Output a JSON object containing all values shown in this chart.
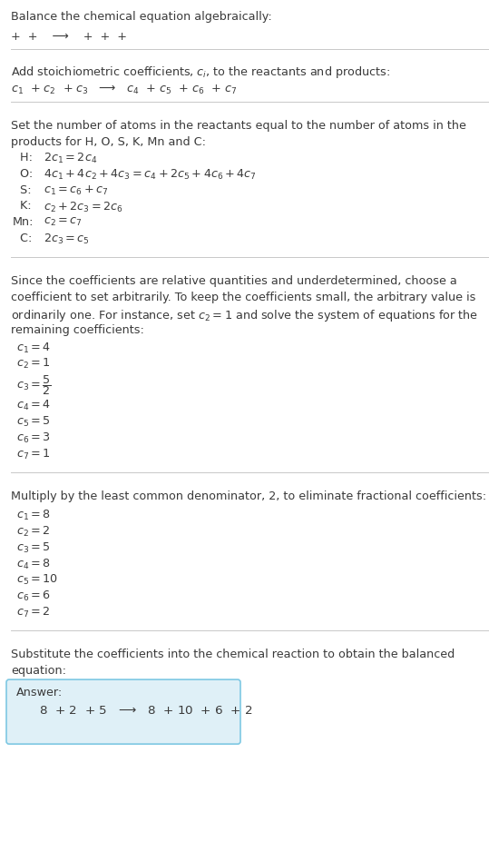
{
  "title": "Balance the chemical equation algebraically:",
  "section1_line1": "+  +    ⟶    +  +  +",
  "section2_header": "Add stoichiometric coefficients, $c_i$, to the reactants and products:",
  "section2_line1": "$c_1$  + $c_2$  + $c_3$   ⟶   $c_4$  + $c_5$  + $c_6$  + $c_7$",
  "section3_header1": "Set the number of atoms in the reactants equal to the number of atoms in the",
  "section3_header2": "products for H, O, S, K, Mn and C:",
  "section3_lines": [
    [
      "  H:",
      "  $2 c_1 = 2 c_4$"
    ],
    [
      "  O:",
      "  $4 c_1 + 4 c_2 + 4 c_3 = c_4 + 2 c_5 + 4 c_6 + 4 c_7$"
    ],
    [
      "  S:",
      "  $c_1 = c_6 + c_7$"
    ],
    [
      "  K:",
      "  $c_2 + 2 c_3 = 2 c_6$"
    ],
    [
      "Mn:",
      "  $c_2 = c_7$"
    ],
    [
      "  C:",
      "  $2 c_3 = c_5$"
    ]
  ],
  "section4_header1": "Since the coefficients are relative quantities and underdetermined, choose a",
  "section4_header2": "coefficient to set arbitrarily. To keep the coefficients small, the arbitrary value is",
  "section4_header3": "ordinarily one. For instance, set $c_2 = 1$ and solve the system of equations for the",
  "section4_header4": "remaining coefficients:",
  "section4_lines": [
    "$c_1 = 4$",
    "$c_2 = 1$",
    "$c_3 = \\dfrac{5}{2}$",
    "$c_4 = 4$",
    "$c_5 = 5$",
    "$c_6 = 3$",
    "$c_7 = 1$"
  ],
  "section5_header": "Multiply by the least common denominator, 2, to eliminate fractional coefficients:",
  "section5_lines": [
    "$c_1 = 8$",
    "$c_2 = 2$",
    "$c_3 = 5$",
    "$c_4 = 8$",
    "$c_5 = 10$",
    "$c_6 = 6$",
    "$c_7 = 2$"
  ],
  "section6_header1": "Substitute the coefficients into the chemical reaction to obtain the balanced",
  "section6_header2": "equation:",
  "answer_label": "Answer:",
  "answer_line": "    $8$  + $2$  + $5$   ⟶   $8$  + $10$  + $6$  + $2$",
  "bg_color": "#ffffff",
  "text_color": "#3a3a3a",
  "answer_bg": "#dff0f7",
  "answer_border": "#7ec8e3",
  "separator_color": "#c8c8c8",
  "font_size": 9.2
}
